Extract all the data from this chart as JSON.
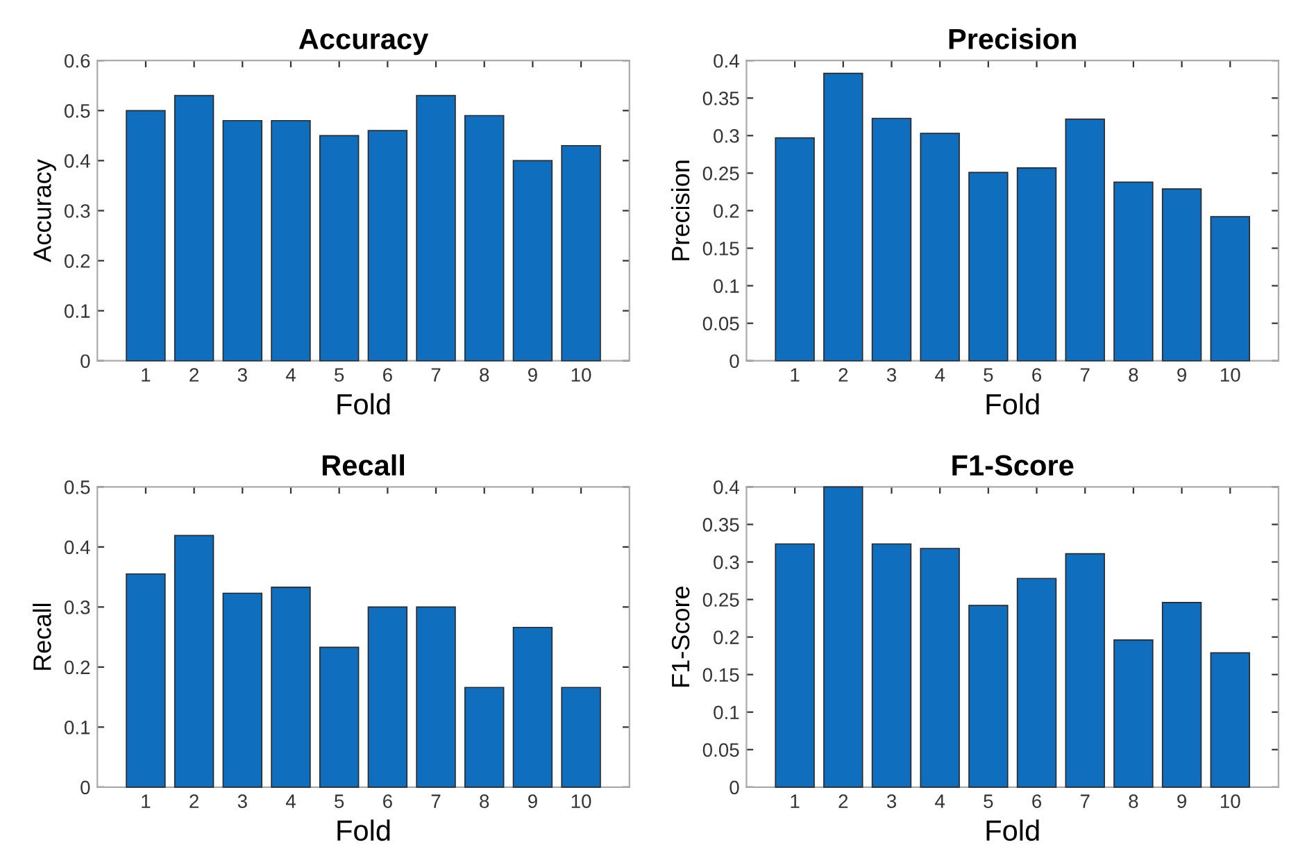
{
  "chart_data": [
    {
      "type": "bar",
      "title": "Accuracy",
      "xlabel": "Fold",
      "ylabel": "Accuracy",
      "categories": [
        "1",
        "2",
        "3",
        "4",
        "5",
        "6",
        "7",
        "8",
        "9",
        "10"
      ],
      "values": [
        0.5,
        0.53,
        0.48,
        0.48,
        0.45,
        0.46,
        0.53,
        0.49,
        0.4,
        0.43
      ],
      "color": "#106ebe",
      "ylim": [
        0,
        0.6
      ],
      "yticks": [
        0,
        0.1,
        0.2,
        0.3,
        0.4,
        0.5,
        0.6
      ],
      "grid": false
    },
    {
      "type": "bar",
      "title": "Precision",
      "xlabel": "Fold",
      "ylabel": "Precision",
      "categories": [
        "1",
        "2",
        "3",
        "4",
        "5",
        "6",
        "7",
        "8",
        "9",
        "10"
      ],
      "values": [
        0.297,
        0.383,
        0.323,
        0.303,
        0.251,
        0.257,
        0.322,
        0.238,
        0.229,
        0.192
      ],
      "color": "#106ebe",
      "ylim": [
        0,
        0.4
      ],
      "yticks": [
        0,
        0.05,
        0.1,
        0.15,
        0.2,
        0.25,
        0.3,
        0.35,
        0.4
      ],
      "grid": false
    },
    {
      "type": "bar",
      "title": "Recall",
      "xlabel": "Fold",
      "ylabel": "Recall",
      "categories": [
        "1",
        "2",
        "3",
        "4",
        "5",
        "6",
        "7",
        "8",
        "9",
        "10"
      ],
      "values": [
        0.355,
        0.419,
        0.323,
        0.333,
        0.233,
        0.3,
        0.3,
        0.166,
        0.266,
        0.166
      ],
      "color": "#106ebe",
      "ylim": [
        0,
        0.5
      ],
      "yticks": [
        0,
        0.1,
        0.2,
        0.3,
        0.4,
        0.5
      ],
      "grid": false
    },
    {
      "type": "bar",
      "title": "F1-Score",
      "xlabel": "Fold",
      "ylabel": "F1-Score",
      "categories": [
        "1",
        "2",
        "3",
        "4",
        "5",
        "6",
        "7",
        "8",
        "9",
        "10"
      ],
      "values": [
        0.324,
        0.4,
        0.324,
        0.318,
        0.242,
        0.278,
        0.311,
        0.196,
        0.246,
        0.179
      ],
      "color": "#106ebe",
      "ylim": [
        0,
        0.4
      ],
      "yticks": [
        0,
        0.05,
        0.1,
        0.15,
        0.2,
        0.25,
        0.3,
        0.35,
        0.4
      ],
      "grid": false
    }
  ]
}
